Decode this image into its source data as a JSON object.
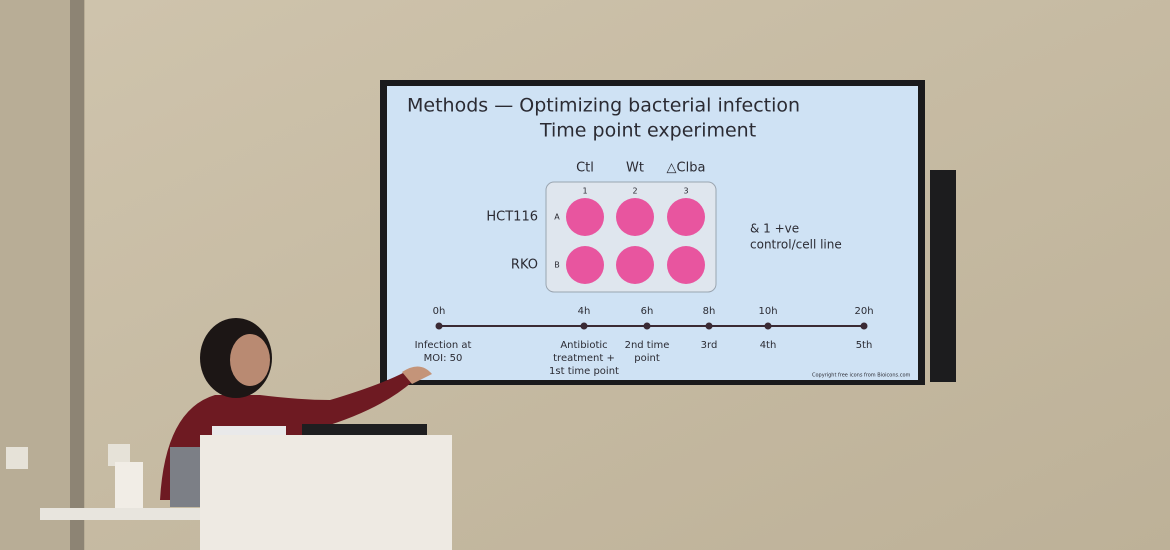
{
  "slide": {
    "title": "Methods — Optimizing bacterial infection",
    "subtitle": "Time point experiment",
    "plate": {
      "columns": [
        "Ctl",
        "Wt",
        "△Clba"
      ],
      "column_numbers": [
        "1",
        "2",
        "3"
      ],
      "row_letters": [
        "A",
        "B"
      ],
      "rows": [
        "HCT116",
        "RKO"
      ]
    },
    "note": [
      "& 1 +ve",
      "control/cell line"
    ],
    "timeline": [
      {
        "time": "0h",
        "label": [
          "Infection at",
          "MOI: 50"
        ]
      },
      {
        "time": "4h",
        "label": [
          "Antibiotic",
          "treatment +",
          "1st time point"
        ]
      },
      {
        "time": "6h",
        "label": [
          "2nd time",
          "point"
        ]
      },
      {
        "time": "8h",
        "label": [
          "3rd"
        ]
      },
      {
        "time": "10h",
        "label": [
          "4th"
        ]
      },
      {
        "time": "20h",
        "label": [
          "5th"
        ]
      }
    ],
    "copyright": "Copyright free icons from Bioicons.com"
  }
}
